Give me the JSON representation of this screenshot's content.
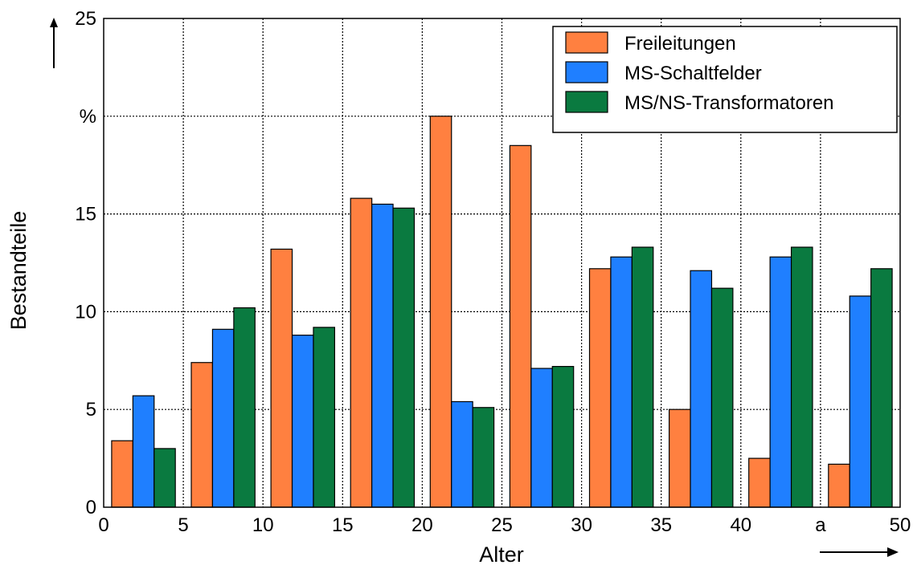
{
  "chart_data": {
    "type": "bar",
    "xlabel": "Alter",
    "ylabel": "Bestandteile",
    "xlim": [
      0,
      50
    ],
    "ylim": [
      0,
      25
    ],
    "x_ticks": [
      "0",
      "5",
      "10",
      "15",
      "20",
      "25",
      "30",
      "35",
      "40",
      "a",
      "50"
    ],
    "y_ticks": [
      "0",
      "5",
      "10",
      "15",
      "%",
      "25"
    ],
    "grid": true,
    "legend_position": "top-right",
    "groups": [
      {
        "x_start": 0,
        "x_end": 5
      },
      {
        "x_start": 5,
        "x_end": 10
      },
      {
        "x_start": 10,
        "x_end": 15
      },
      {
        "x_start": 15,
        "x_end": 20
      },
      {
        "x_start": 20,
        "x_end": 25
      },
      {
        "x_start": 25,
        "x_end": 30
      },
      {
        "x_start": 30,
        "x_end": 35
      },
      {
        "x_start": 35,
        "x_end": 40
      },
      {
        "x_start": 40,
        "x_end": 45
      },
      {
        "x_start": 45,
        "x_end": 50
      }
    ],
    "series": [
      {
        "name": "Freileitungen",
        "color": "#ff8040",
        "values": [
          3.4,
          7.4,
          13.2,
          15.8,
          20.0,
          18.5,
          12.2,
          5.0,
          2.5,
          2.2
        ]
      },
      {
        "name": "MS-Schaltfelder",
        "color": "#1f7fff",
        "values": [
          5.7,
          9.1,
          8.8,
          15.5,
          5.4,
          7.1,
          12.8,
          12.1,
          12.8,
          10.8
        ]
      },
      {
        "name": "MS/NS-Transformatoren",
        "color": "#0a7a40",
        "values": [
          3.0,
          10.2,
          9.2,
          15.3,
          5.1,
          7.2,
          13.3,
          11.2,
          13.3,
          12.2
        ]
      }
    ]
  }
}
